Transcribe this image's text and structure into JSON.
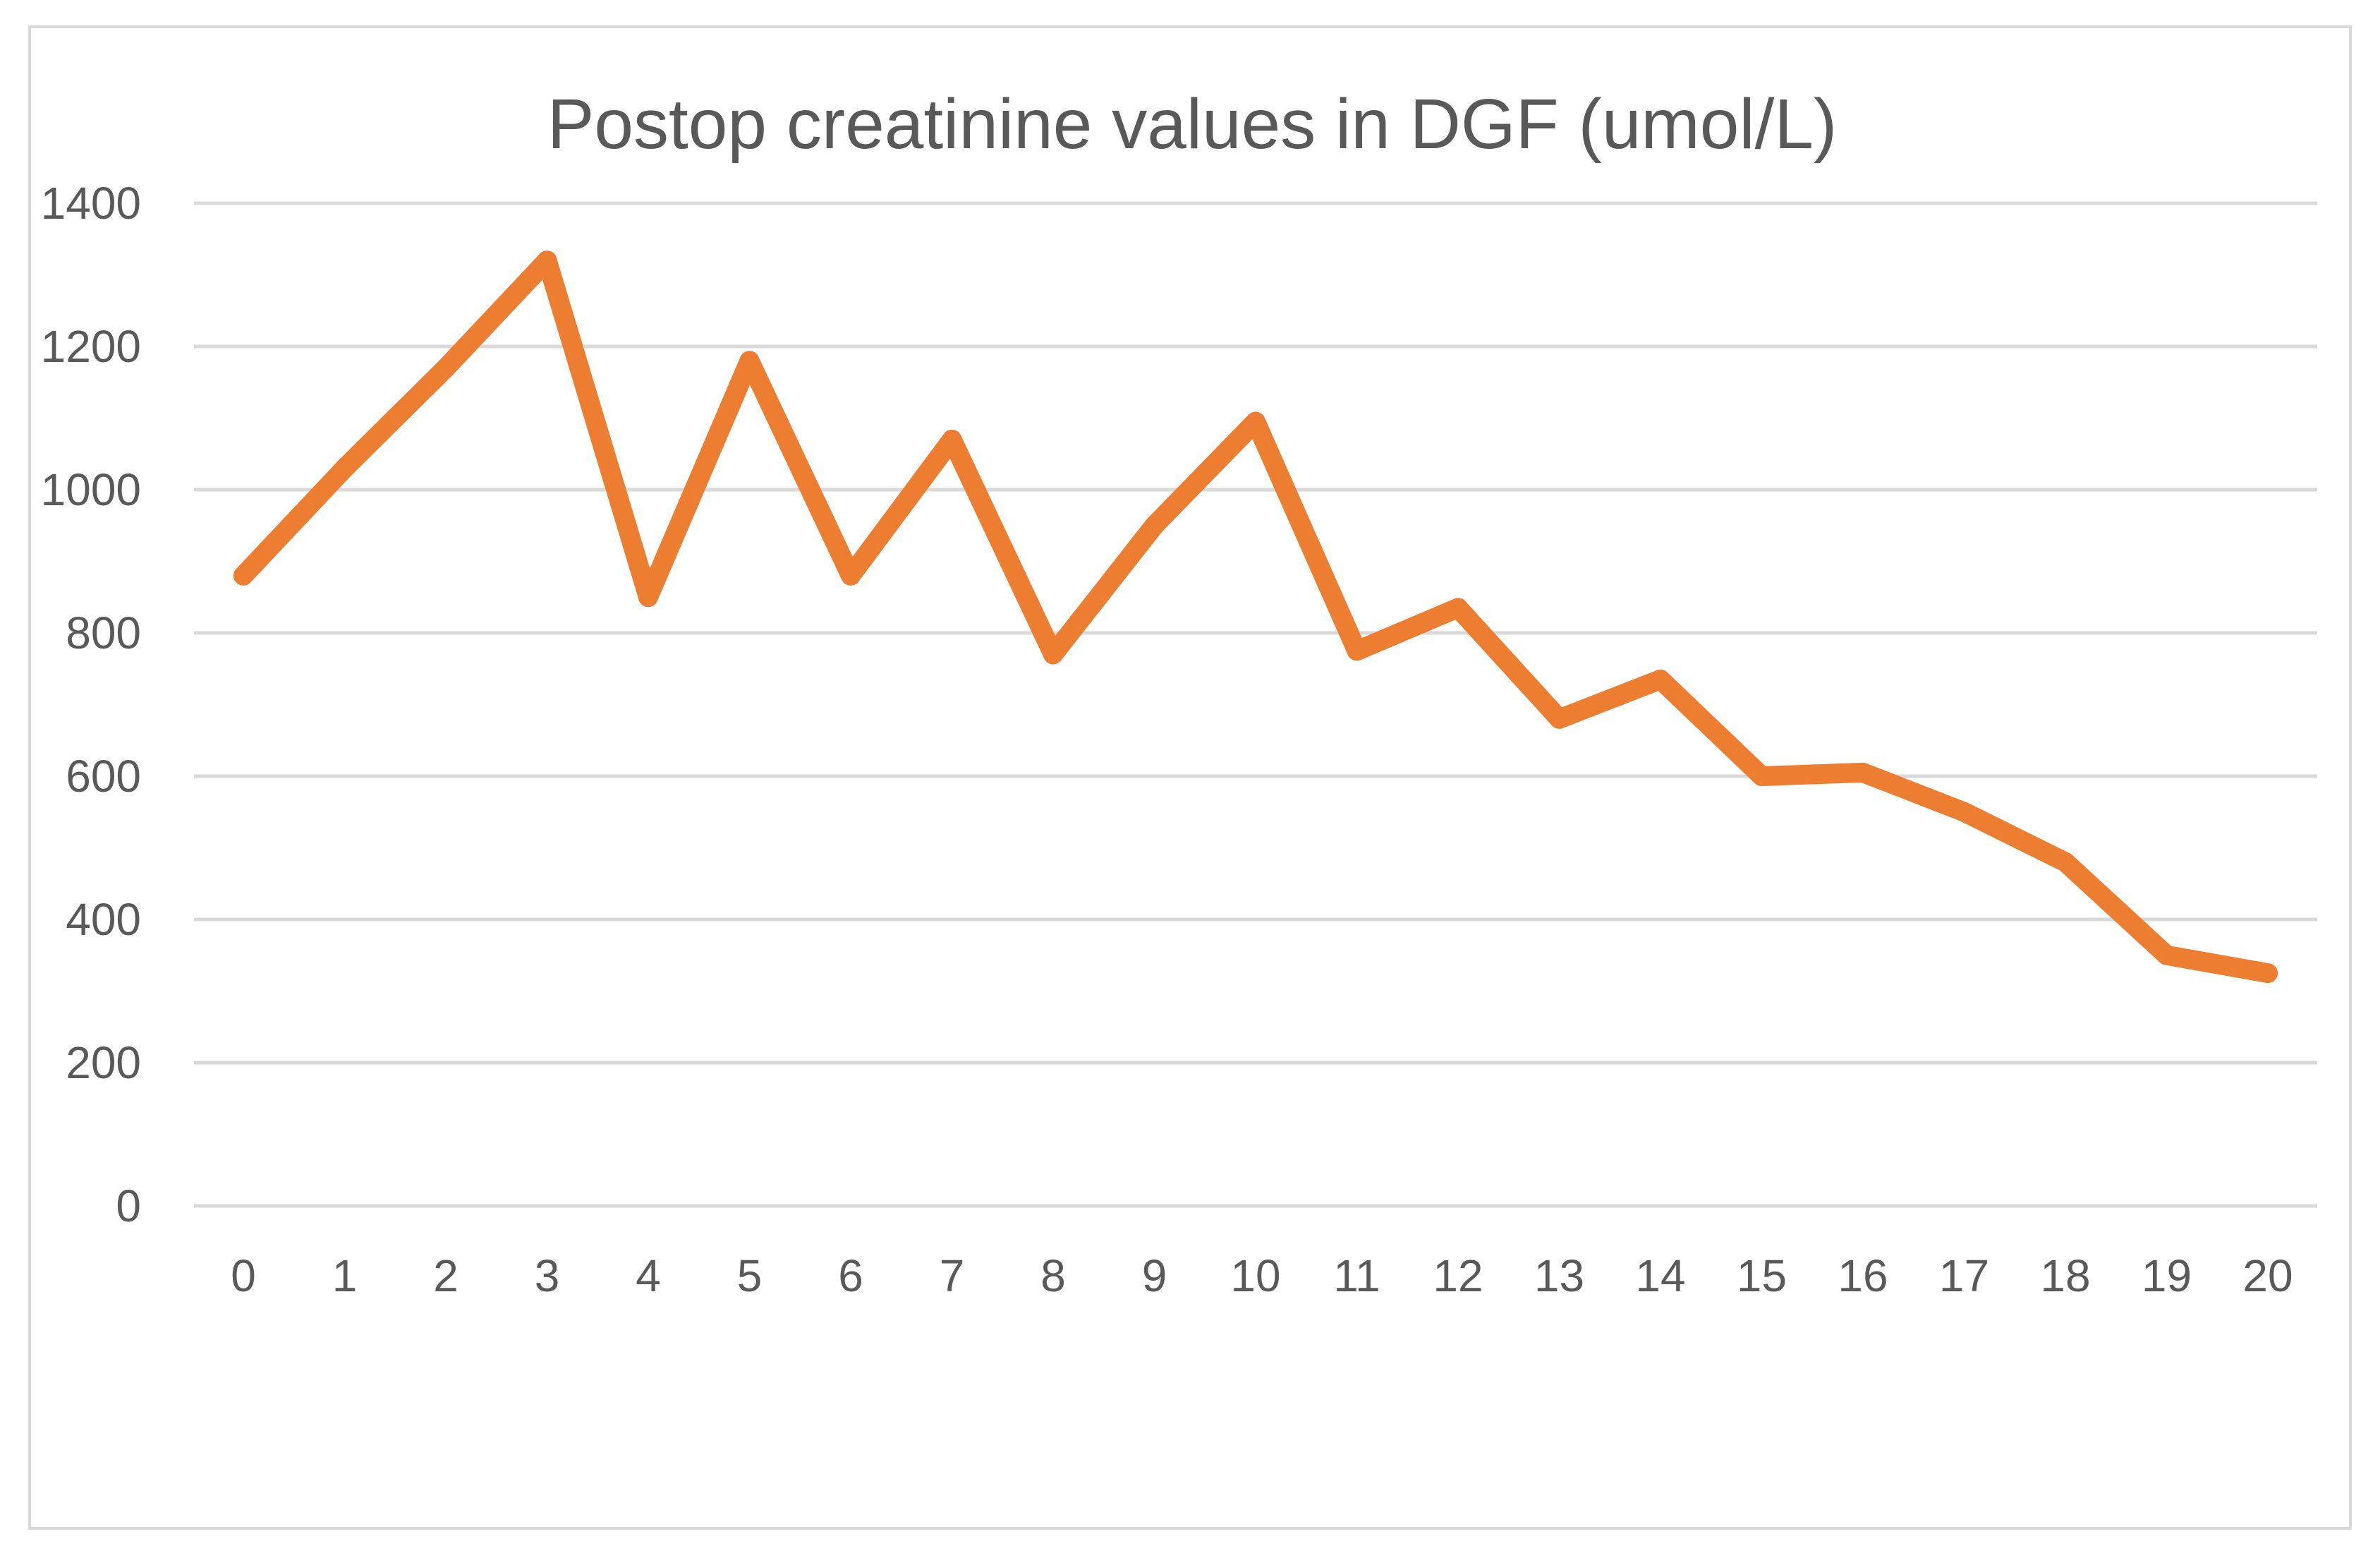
{
  "chart_data": {
    "type": "line",
    "title": "Postop creatinine values in DGF (umol/L)",
    "xlabel": "",
    "ylabel": "",
    "categories": [
      "0",
      "1",
      "2",
      "3",
      "4",
      "5",
      "6",
      "7",
      "8",
      "9",
      "10",
      "11",
      "12",
      "13",
      "14",
      "15",
      "16",
      "17",
      "18",
      "19",
      "20"
    ],
    "series": [
      {
        "values": [
          880,
          1030,
          1170,
          1320,
          850,
          1180,
          880,
          1070,
          770,
          950,
          1095,
          775,
          835,
          680,
          735,
          600,
          605,
          550,
          480,
          350,
          325
        ],
        "color": "#ed7d31"
      }
    ],
    "ylim": [
      0,
      1400
    ],
    "yticks": [
      "0",
      "200",
      "400",
      "600",
      "800",
      "1000",
      "1200",
      "1400"
    ],
    "grid": true,
    "legend": "none"
  }
}
